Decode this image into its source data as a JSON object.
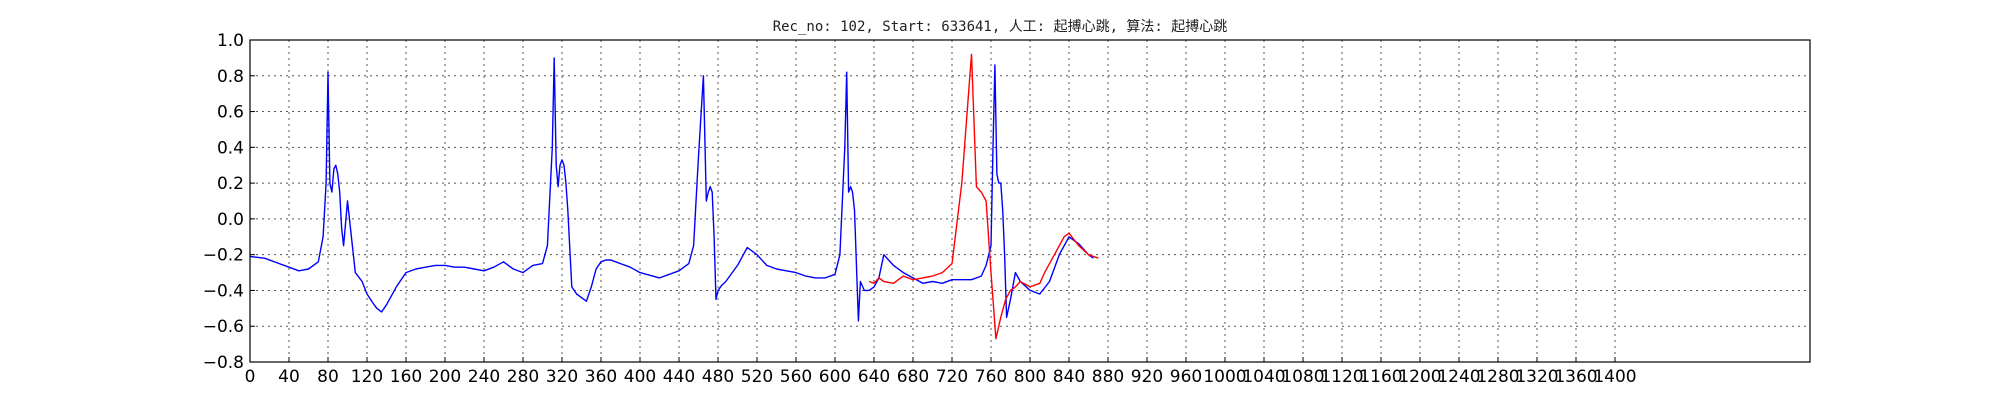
{
  "chart_data": {
    "type": "line",
    "title": "Rec_no: 102, Start: 633641, 人工: 起搏心跳, 算法: 起搏心跳",
    "xlabel": "",
    "ylabel": "",
    "xlim": [
      0,
      1600
    ],
    "ylim": [
      -0.8,
      1.0
    ],
    "grid": true,
    "x_ticks": [
      0,
      40,
      80,
      120,
      160,
      200,
      240,
      280,
      320,
      360,
      400,
      440,
      480,
      520,
      560,
      600,
      640,
      680,
      720,
      760,
      800,
      840,
      880,
      920,
      960,
      1000,
      1040,
      1080,
      1120,
      1160,
      1200,
      1240,
      1280,
      1320,
      1360,
      1400
    ],
    "x_tick_labels": [
      "0",
      "40",
      "80",
      "120",
      "160",
      "200",
      "240",
      "280",
      "320",
      "360",
      "400",
      "440",
      "480",
      "520",
      "560",
      "600",
      "640",
      "680",
      "720",
      "760",
      "800",
      "840",
      "880",
      "920",
      "960",
      "1000",
      "1040",
      "1080",
      "1120",
      "1160",
      "1200",
      "1240",
      "1280",
      "1320",
      "1360",
      "1400"
    ],
    "y_ticks": [
      1.0,
      0.8,
      0.6,
      0.4,
      0.2,
      0.0,
      -0.2,
      -0.4,
      -0.6,
      -0.8
    ],
    "y_tick_labels": [
      "1.0",
      "0.8",
      "0.6",
      "0.4",
      "0.2",
      "0.0",
      "−0.2",
      "−0.4",
      "−0.6",
      "−0.8"
    ],
    "series": [
      {
        "color": "#0000ff",
        "x": [
          0,
          15,
          30,
          40,
          50,
          60,
          65,
          70,
          75,
          78,
          80,
          82,
          84,
          86,
          88,
          90,
          92,
          94,
          96,
          100,
          108,
          115,
          120,
          126,
          130,
          135,
          140,
          150,
          160,
          170,
          180,
          190,
          200,
          210,
          220,
          230,
          240,
          250,
          260,
          270,
          280,
          290,
          300,
          305,
          310,
          312,
          314,
          316,
          318,
          320,
          322,
          324,
          326,
          330,
          335,
          340,
          345,
          350,
          355,
          360,
          365,
          370,
          375,
          380,
          390,
          400,
          420,
          440,
          450,
          455,
          460,
          465,
          468,
          470,
          472,
          474,
          476,
          478,
          480,
          484,
          488,
          492,
          500,
          510,
          520,
          530,
          540,
          550,
          560,
          570,
          580,
          590,
          600,
          605,
          610,
          612,
          614,
          616,
          618,
          620,
          622,
          624,
          626,
          630,
          635,
          640,
          645,
          650,
          660,
          670,
          680,
          690,
          700,
          710,
          720,
          730,
          740,
          750,
          755,
          760,
          762,
          764,
          766,
          768,
          770,
          772,
          774,
          776,
          780,
          785,
          790,
          800,
          810,
          820,
          830,
          840,
          850,
          860,
          865
        ],
        "y": [
          -0.21,
          -0.22,
          -0.25,
          -0.27,
          -0.29,
          -0.28,
          -0.26,
          -0.24,
          -0.1,
          0.2,
          0.82,
          0.2,
          0.15,
          0.28,
          0.3,
          0.25,
          0.15,
          -0.05,
          -0.15,
          0.1,
          -0.3,
          -0.35,
          -0.42,
          -0.47,
          -0.5,
          -0.52,
          -0.48,
          -0.38,
          -0.3,
          -0.28,
          -0.27,
          -0.26,
          -0.26,
          -0.27,
          -0.27,
          -0.28,
          -0.29,
          -0.27,
          -0.24,
          -0.28,
          -0.3,
          -0.26,
          -0.25,
          -0.15,
          0.4,
          0.9,
          0.3,
          0.18,
          0.3,
          0.33,
          0.3,
          0.2,
          0.05,
          -0.38,
          -0.42,
          -0.44,
          -0.46,
          -0.38,
          -0.28,
          -0.24,
          -0.23,
          -0.23,
          -0.24,
          -0.25,
          -0.27,
          -0.3,
          -0.33,
          -0.29,
          -0.25,
          -0.15,
          0.35,
          0.8,
          0.1,
          0.15,
          0.18,
          0.15,
          -0.1,
          -0.45,
          -0.4,
          -0.37,
          -0.35,
          -0.32,
          -0.26,
          -0.16,
          -0.2,
          -0.26,
          -0.28,
          -0.29,
          -0.3,
          -0.32,
          -0.33,
          -0.33,
          -0.31,
          -0.2,
          0.4,
          0.82,
          0.15,
          0.18,
          0.15,
          0.05,
          -0.25,
          -0.57,
          -0.35,
          -0.4,
          -0.4,
          -0.38,
          -0.33,
          -0.2,
          -0.26,
          -0.3,
          -0.33,
          -0.36,
          -0.35,
          -0.36,
          -0.34,
          -0.34,
          -0.34,
          -0.32,
          -0.26,
          -0.15,
          0.4,
          0.86,
          0.25,
          0.2,
          0.2,
          0.05,
          -0.2,
          -0.55,
          -0.45,
          -0.3,
          -0.35,
          -0.4,
          -0.42,
          -0.35,
          -0.2,
          -0.1,
          -0.14,
          -0.2,
          -0.22
        ]
      },
      {
        "color": "#ff0000",
        "x": [
          635,
          640,
          645,
          650,
          660,
          670,
          680,
          690,
          700,
          710,
          720,
          730,
          740,
          745,
          750,
          755,
          760,
          765,
          770,
          775,
          780,
          785,
          790,
          800,
          810,
          815,
          820,
          825,
          830,
          835,
          840,
          850,
          860,
          870
        ],
        "y": [
          -0.35,
          -0.36,
          -0.33,
          -0.35,
          -0.36,
          -0.32,
          -0.34,
          -0.33,
          -0.32,
          -0.3,
          -0.25,
          0.2,
          0.92,
          0.18,
          0.15,
          0.1,
          -0.3,
          -0.67,
          -0.55,
          -0.45,
          -0.4,
          -0.38,
          -0.35,
          -0.38,
          -0.36,
          -0.3,
          -0.25,
          -0.2,
          -0.15,
          -0.1,
          -0.08,
          -0.15,
          -0.2,
          -0.22
        ]
      }
    ]
  }
}
